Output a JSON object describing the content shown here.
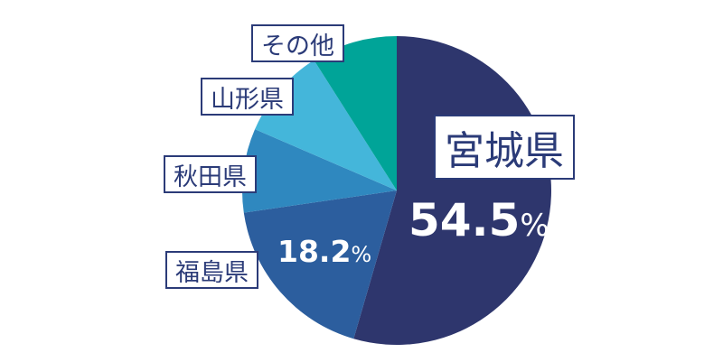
{
  "chart_data": {
    "type": "pie",
    "categories": [
      "宮城県",
      "福島県",
      "秋田県",
      "山形県",
      "その他"
    ],
    "values": [
      54.5,
      18.2,
      8.8,
      9.5,
      9.0
    ],
    "colors": [
      "#2e366d",
      "#2c5e9e",
      "#2f88bf",
      "#44b6da",
      "#00a498"
    ],
    "data_labels": [
      {
        "number": "54.5",
        "unit": "%"
      },
      {
        "number": "18.2",
        "unit": "%"
      },
      null,
      null,
      null
    ],
    "label_color": "#2b3b78"
  }
}
